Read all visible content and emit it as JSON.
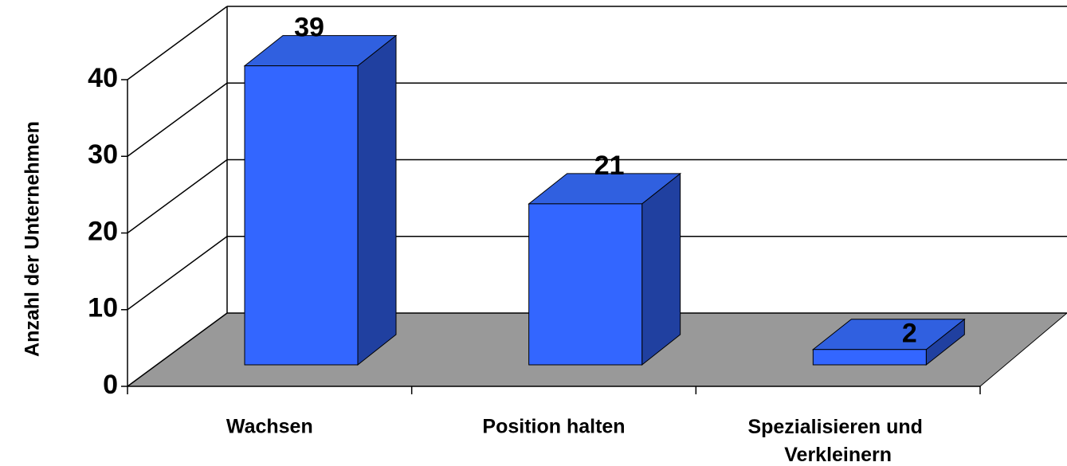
{
  "chart_data": {
    "type": "bar3d",
    "y_label": "Anzahl der Unternehmen",
    "categories": [
      "Wachsen",
      "Position halten",
      "Spezialisieren und Verkleinern"
    ],
    "values": [
      39,
      21,
      2
    ],
    "color": "#3366ff",
    "ylim": [
      0,
      40
    ],
    "yticks": [
      0,
      10,
      20,
      30,
      40
    ],
    "grid": true
  }
}
